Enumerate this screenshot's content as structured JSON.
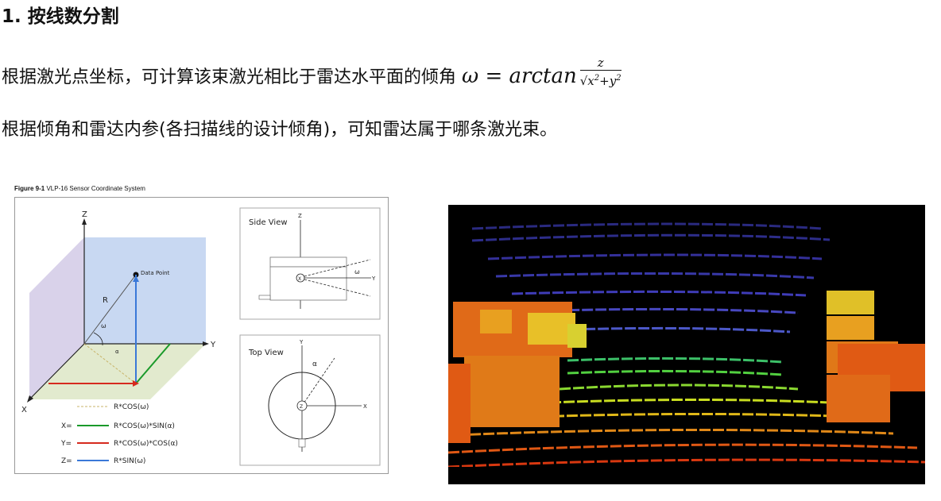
{
  "heading": "1. 按线数分割",
  "para1": {
    "text": "根据激光点坐标，可计算该束激光相比于雷达水平面的倾角",
    "formula_lhs": "ω = arctan",
    "formula_num": "z",
    "formula_den_x": "x",
    "formula_den_plus": "+",
    "formula_den_y": "y",
    "formula_exp": "2"
  },
  "para2": "根据倾角和雷达内参(各扫描线的设计倾角)，可知雷达属于哪条激光束。",
  "figure": {
    "caption_bold": "Figure 9-1",
    "caption_rest": " VLP-16 Sensor Coordinate System",
    "axis_z": "Z",
    "axis_y": "Y",
    "axis_x": "X",
    "data_point": "Data Point",
    "r_label": "R",
    "omega": "ω",
    "alpha": "α",
    "legend": [
      {
        "prefix": "",
        "text": "R*COS(ω)",
        "color": "#c8b46a"
      },
      {
        "prefix": "X=",
        "text": "R*COS(ω)*SIN(α)",
        "color": "#1a9a2a"
      },
      {
        "prefix": "Y=",
        "text": "R*COS(ω)*COS(α)",
        "color": "#d62a1e"
      },
      {
        "prefix": "Z=",
        "text": "R*SIN(ω)",
        "color": "#3a78d8"
      }
    ],
    "side_view": {
      "title": "Side View",
      "z": "Z",
      "y": "Y",
      "x": "X",
      "omega": "ω"
    },
    "top_view": {
      "title": "Top View",
      "y": "Y",
      "x": "X",
      "z": "Z",
      "alpha": "α"
    }
  },
  "colors": {
    "blue_axis": "#3a78d8",
    "green_axis": "#1a9a2a",
    "red_axis": "#d62a1e",
    "plane_blue": "#c8d8f2",
    "plane_green": "#dfe8c9"
  }
}
